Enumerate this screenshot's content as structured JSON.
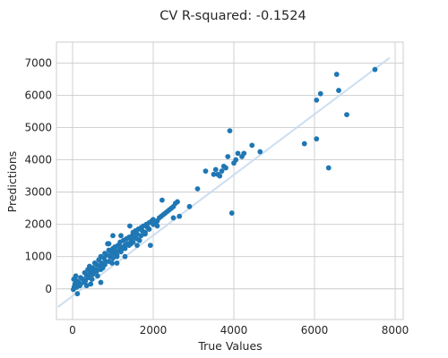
{
  "chart_data": {
    "type": "scatter",
    "title": "CV R-squared: -0.1524",
    "xlabel": "True Values",
    "ylabel": "Predictions",
    "xlim": [
      -400,
      8200
    ],
    "ylim": [
      -950,
      7650
    ],
    "x_ticks": [
      0,
      2000,
      4000,
      6000,
      8000
    ],
    "y_ticks": [
      0,
      1000,
      2000,
      3000,
      4000,
      5000,
      6000,
      7000
    ],
    "grid": true,
    "legend": "none",
    "reference_line": {
      "x": [
        -350,
        7850
      ],
      "y": [
        -550,
        7150
      ],
      "color": "#c6dbef"
    },
    "marker_color": "#1f77b4",
    "points": [
      [
        40,
        60
      ],
      [
        60,
        150
      ],
      [
        20,
        -20
      ],
      [
        100,
        250
      ],
      [
        150,
        200
      ],
      [
        80,
        400
      ],
      [
        30,
        300
      ],
      [
        120,
        -150
      ],
      [
        180,
        100
      ],
      [
        200,
        350
      ],
      [
        250,
        300
      ],
      [
        300,
        500
      ],
      [
        320,
        250
      ],
      [
        350,
        400
      ],
      [
        380,
        600
      ],
      [
        400,
        450
      ],
      [
        420,
        700
      ],
      [
        450,
        550
      ],
      [
        480,
        300
      ],
      [
        500,
        650
      ],
      [
        520,
        500
      ],
      [
        550,
        800
      ],
      [
        580,
        600
      ],
      [
        600,
        750
      ],
      [
        620,
        400
      ],
      [
        650,
        900
      ],
      [
        680,
        700
      ],
      [
        700,
        1000
      ],
      [
        720,
        800
      ],
      [
        750,
        650
      ],
      [
        780,
        950
      ],
      [
        800,
        1100
      ],
      [
        820,
        850
      ],
      [
        850,
        1050
      ],
      [
        870,
        1400
      ],
      [
        900,
        1200
      ],
      [
        930,
        1000
      ],
      [
        950,
        1150
      ],
      [
        980,
        800
      ],
      [
        1000,
        1250
      ],
      [
        1020,
        1100
      ],
      [
        1050,
        1300
      ],
      [
        1080,
        1150
      ],
      [
        1100,
        1000
      ],
      [
        1130,
        1350
      ],
      [
        1150,
        1200
      ],
      [
        1180,
        1450
      ],
      [
        1200,
        1300
      ],
      [
        1230,
        1250
      ],
      [
        1260,
        1500
      ],
      [
        1300,
        1350
      ],
      [
        1330,
        1550
      ],
      [
        1360,
        1400
      ],
      [
        1400,
        1600
      ],
      [
        1420,
        1950
      ],
      [
        1450,
        1500
      ],
      [
        1480,
        1650
      ],
      [
        1500,
        1750
      ],
      [
        1530,
        1600
      ],
      [
        1560,
        1800
      ],
      [
        1600,
        1700
      ],
      [
        1630,
        1850
      ],
      [
        1660,
        1500
      ],
      [
        1700,
        1900
      ],
      [
        1730,
        1800
      ],
      [
        1760,
        1950
      ],
      [
        1800,
        1700
      ],
      [
        1830,
        2000
      ],
      [
        1860,
        1900
      ],
      [
        1900,
        2050
      ],
      [
        1930,
        1350
      ],
      [
        1960,
        2100
      ],
      [
        2000,
        2000
      ],
      [
        2050,
        2050
      ],
      [
        2100,
        2100
      ],
      [
        2150,
        2200
      ],
      [
        2200,
        2250
      ],
      [
        2220,
        2750
      ],
      [
        2250,
        2300
      ],
      [
        2300,
        2350
      ],
      [
        2350,
        2400
      ],
      [
        2400,
        2450
      ],
      [
        2450,
        2500
      ],
      [
        2500,
        2550
      ],
      [
        2550,
        2650
      ],
      [
        2600,
        2700
      ],
      [
        2650,
        2250
      ],
      [
        2900,
        2550
      ],
      [
        3100,
        3100
      ],
      [
        3300,
        3650
      ],
      [
        3500,
        3550
      ],
      [
        3550,
        3700
      ],
      [
        3600,
        3550
      ],
      [
        3650,
        3500
      ],
      [
        3700,
        3650
      ],
      [
        3750,
        3800
      ],
      [
        3800,
        3750
      ],
      [
        3850,
        4100
      ],
      [
        3900,
        4900
      ],
      [
        3950,
        2350
      ],
      [
        4000,
        3900
      ],
      [
        4050,
        4000
      ],
      [
        4100,
        4200
      ],
      [
        4200,
        4100
      ],
      [
        4250,
        4200
      ],
      [
        4450,
        4450
      ],
      [
        4650,
        4250
      ],
      [
        5750,
        4500
      ],
      [
        6050,
        4650
      ],
      [
        6050,
        5850
      ],
      [
        6150,
        6050
      ],
      [
        6350,
        3750
      ],
      [
        6550,
        6650
      ],
      [
        6600,
        6150
      ],
      [
        6800,
        5400
      ],
      [
        7500,
        6800
      ],
      [
        100,
        50
      ],
      [
        200,
        150
      ],
      [
        300,
        200
      ],
      [
        400,
        350
      ],
      [
        500,
        450
      ],
      [
        600,
        550
      ],
      [
        700,
        600
      ],
      [
        800,
        750
      ],
      [
        900,
        850
      ],
      [
        1000,
        950
      ],
      [
        1100,
        1050
      ],
      [
        1200,
        1150
      ],
      [
        1300,
        1250
      ],
      [
        1400,
        1350
      ],
      [
        1500,
        1450
      ],
      [
        1600,
        1550
      ],
      [
        1700,
        1650
      ],
      [
        1800,
        1750
      ],
      [
        1900,
        1850
      ],
      [
        700,
        200
      ],
      [
        1100,
        800
      ],
      [
        1300,
        1000
      ],
      [
        1600,
        1350
      ],
      [
        900,
        1400
      ],
      [
        2000,
        2150
      ],
      [
        2100,
        1950
      ],
      [
        350,
        100
      ],
      [
        450,
        150
      ],
      [
        1000,
        1650
      ],
      [
        1200,
        1650
      ],
      [
        2500,
        2200
      ],
      [
        1450,
        1400
      ]
    ]
  }
}
